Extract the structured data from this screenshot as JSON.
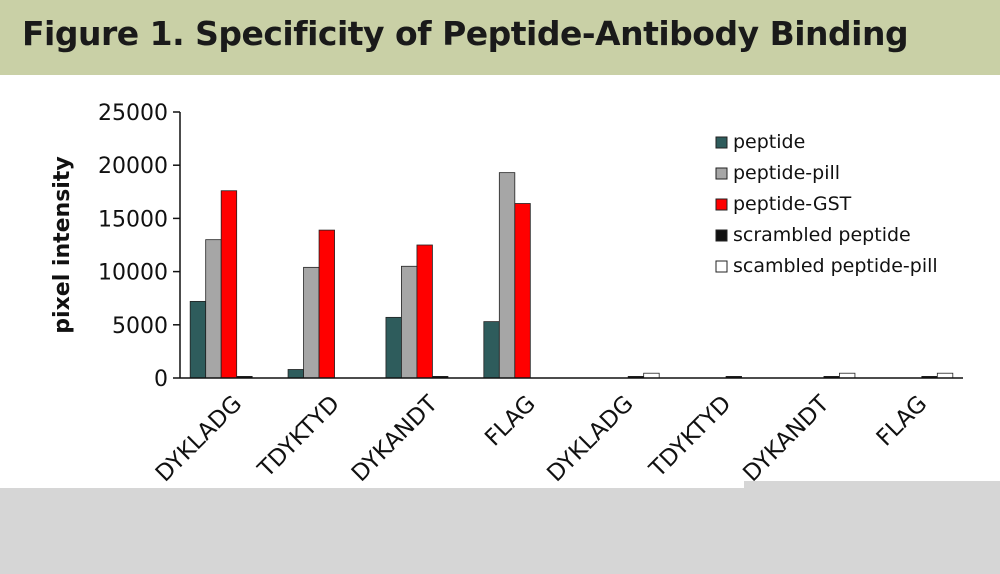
{
  "title": "Figure 1. Specificity of Peptide-Antibody Binding",
  "chart_data": {
    "type": "bar",
    "ylabel": "pixel intensity",
    "xlabel": "",
    "ylim": [
      0,
      25000
    ],
    "yticks": [
      "0",
      "5000",
      "10000",
      "15000",
      "20000",
      "25000"
    ],
    "categories": [
      "DYKLADG",
      "TDYKTYD",
      "DYKANDT",
      "FLAG",
      "DYKLADG",
      "TDYKTYD",
      "DYKANDT",
      "FLAG"
    ],
    "series": [
      {
        "name": "peptide",
        "color": "#2e5c5c",
        "values": [
          7200,
          800,
          5700,
          5300,
          0,
          0,
          0,
          0
        ]
      },
      {
        "name": "peptide-pill",
        "color": "#a6a6a6",
        "values": [
          13000,
          10400,
          10500,
          19300,
          0,
          0,
          0,
          0
        ]
      },
      {
        "name": "peptide-GST",
        "color": "#ff0000",
        "values": [
          17600,
          13900,
          12500,
          16400,
          0,
          0,
          0,
          0
        ]
      },
      {
        "name": "scrambled peptide",
        "color": "#111111",
        "values": [
          150,
          0,
          150,
          0,
          150,
          150,
          150,
          150
        ]
      },
      {
        "name": "scambled peptide-pill",
        "color": "#ffffff",
        "values": [
          0,
          0,
          0,
          0,
          450,
          0,
          450,
          450
        ]
      }
    ],
    "legend_position": "right",
    "grid": false
  }
}
